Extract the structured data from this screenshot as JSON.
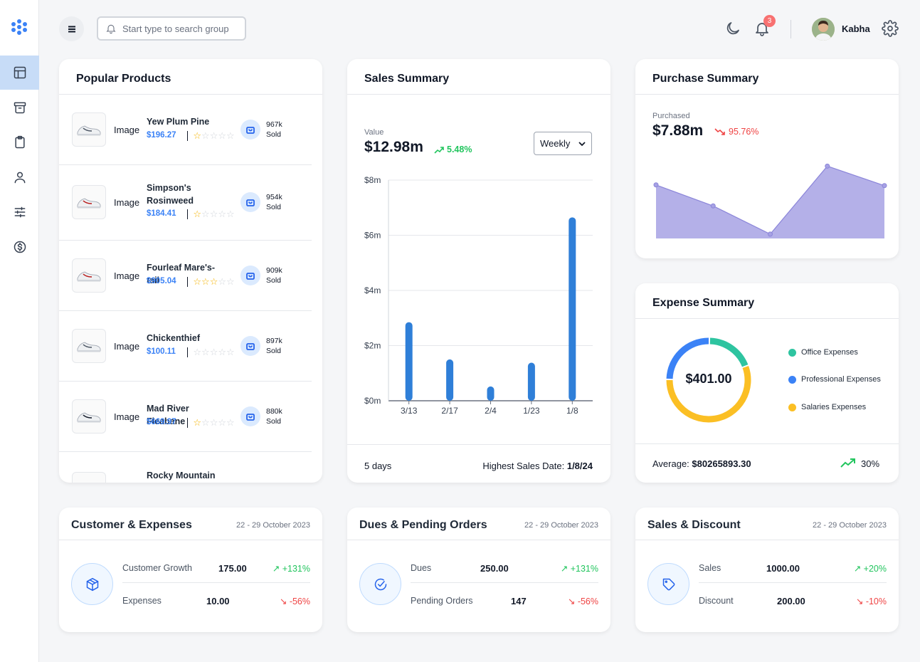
{
  "header": {
    "search_placeholder": "Start type to search groups",
    "notification_count": "3",
    "user_name": "Kabha"
  },
  "sidebar": {
    "items": [
      {
        "icon": "layout-icon",
        "active": true
      },
      {
        "icon": "archive-icon",
        "active": false
      },
      {
        "icon": "clipboard-icon",
        "active": false
      },
      {
        "icon": "user-icon",
        "active": false
      },
      {
        "icon": "sliders-icon",
        "active": false
      },
      {
        "icon": "dollar-circle-icon",
        "active": false
      }
    ]
  },
  "popular_products": {
    "title": "Popular Products",
    "image_label": "Image",
    "sold_label": "Sold",
    "items": [
      {
        "name": "Yew Plum Pine",
        "price": "$196.27",
        "rating": 1,
        "sold": "967k"
      },
      {
        "name": "Simpson's Rosinweed",
        "price": "$184.41",
        "rating": 1,
        "sold": "954k"
      },
      {
        "name": "Fourleaf Mare's-tail",
        "price": "$905.04",
        "rating": 3,
        "sold": "909k"
      },
      {
        "name": "Chickenthief",
        "price": "$100.11",
        "rating": 0,
        "sold": "897k"
      },
      {
        "name": "Mad River Fleabane",
        "price": "$669.97",
        "rating": 1,
        "sold": "880k"
      },
      {
        "name": "Rocky Mountain",
        "price": "",
        "rating": 0,
        "sold": ""
      }
    ]
  },
  "sales_summary": {
    "title": "Sales Summary",
    "value_label": "Value",
    "value": "$12.98m",
    "change": "5.48%",
    "period_options": [
      "Weekly"
    ],
    "period_selected": "Weekly",
    "footer_days": "5 days",
    "highest_label": "Highest Sales Date:",
    "highest_date": "1/8/24",
    "bar_color": "#2f7fd8"
  },
  "chart_data": [
    {
      "type": "bar",
      "title": "Sales Summary",
      "categories": [
        "3/13",
        "2/17",
        "2/4",
        "1/23",
        "1/8"
      ],
      "values": [
        2.85,
        1.5,
        0.52,
        1.38,
        6.65
      ],
      "ytick_labels": [
        "$0m",
        "$2m",
        "$4m",
        "$6m",
        "$8m"
      ],
      "ylim": [
        0,
        8
      ],
      "unit": "$m",
      "grid": true
    },
    {
      "type": "area",
      "title": "Purchase Summary",
      "x": [
        1,
        2,
        3,
        4,
        5
      ],
      "values": [
        7.4,
        4.5,
        0.6,
        10.0,
        7.3
      ],
      "ylim": [
        0,
        12
      ],
      "color": "#b4b0e8",
      "grid": false
    },
    {
      "type": "pie",
      "title": "Expense Summary",
      "categories": [
        "Office Expenses",
        "Professional Expenses",
        "Salaries Expenses"
      ],
      "values": [
        0.19,
        0.25,
        0.56
      ],
      "colors": [
        "#2ec4a0",
        "#3b82f6",
        "#fbbf24"
      ],
      "center_label": "$401.00"
    }
  ],
  "purchase_summary": {
    "title": "Purchase Summary",
    "label": "Purchased",
    "value": "$7.88m",
    "change": "95.76%"
  },
  "expense_summary": {
    "title": "Expense Summary",
    "center_value": "$401.00",
    "legend": [
      "Office Expenses",
      "Professional Expenses",
      "Salaries Expenses"
    ],
    "average_label": "Average:",
    "average_value": "$80265893.30",
    "change": "30%"
  },
  "customer_expenses": {
    "title": "Customer & Expenses",
    "date": "22 - 29 October 2023",
    "rows": [
      {
        "label": "Customer Growth",
        "value": "175.00",
        "change": "+131%",
        "up": true
      },
      {
        "label": "Expenses",
        "value": "10.00",
        "change": "-56%",
        "up": false
      }
    ]
  },
  "dues_pending": {
    "title": "Dues & Pending Orders",
    "date": "22 - 29 October 2023",
    "rows": [
      {
        "label": "Dues",
        "value": "250.00",
        "change": "+131%",
        "up": true
      },
      {
        "label": "Pending Orders",
        "value": "147",
        "change": "-56%",
        "up": false
      }
    ]
  },
  "sales_discount": {
    "title": "Sales & Discount",
    "date": "22 - 29 October 2023",
    "rows": [
      {
        "label": "Sales",
        "value": "1000.00",
        "change": "+20%",
        "up": true
      },
      {
        "label": "Discount",
        "value": "200.00",
        "change": "-10%",
        "up": false
      }
    ]
  }
}
